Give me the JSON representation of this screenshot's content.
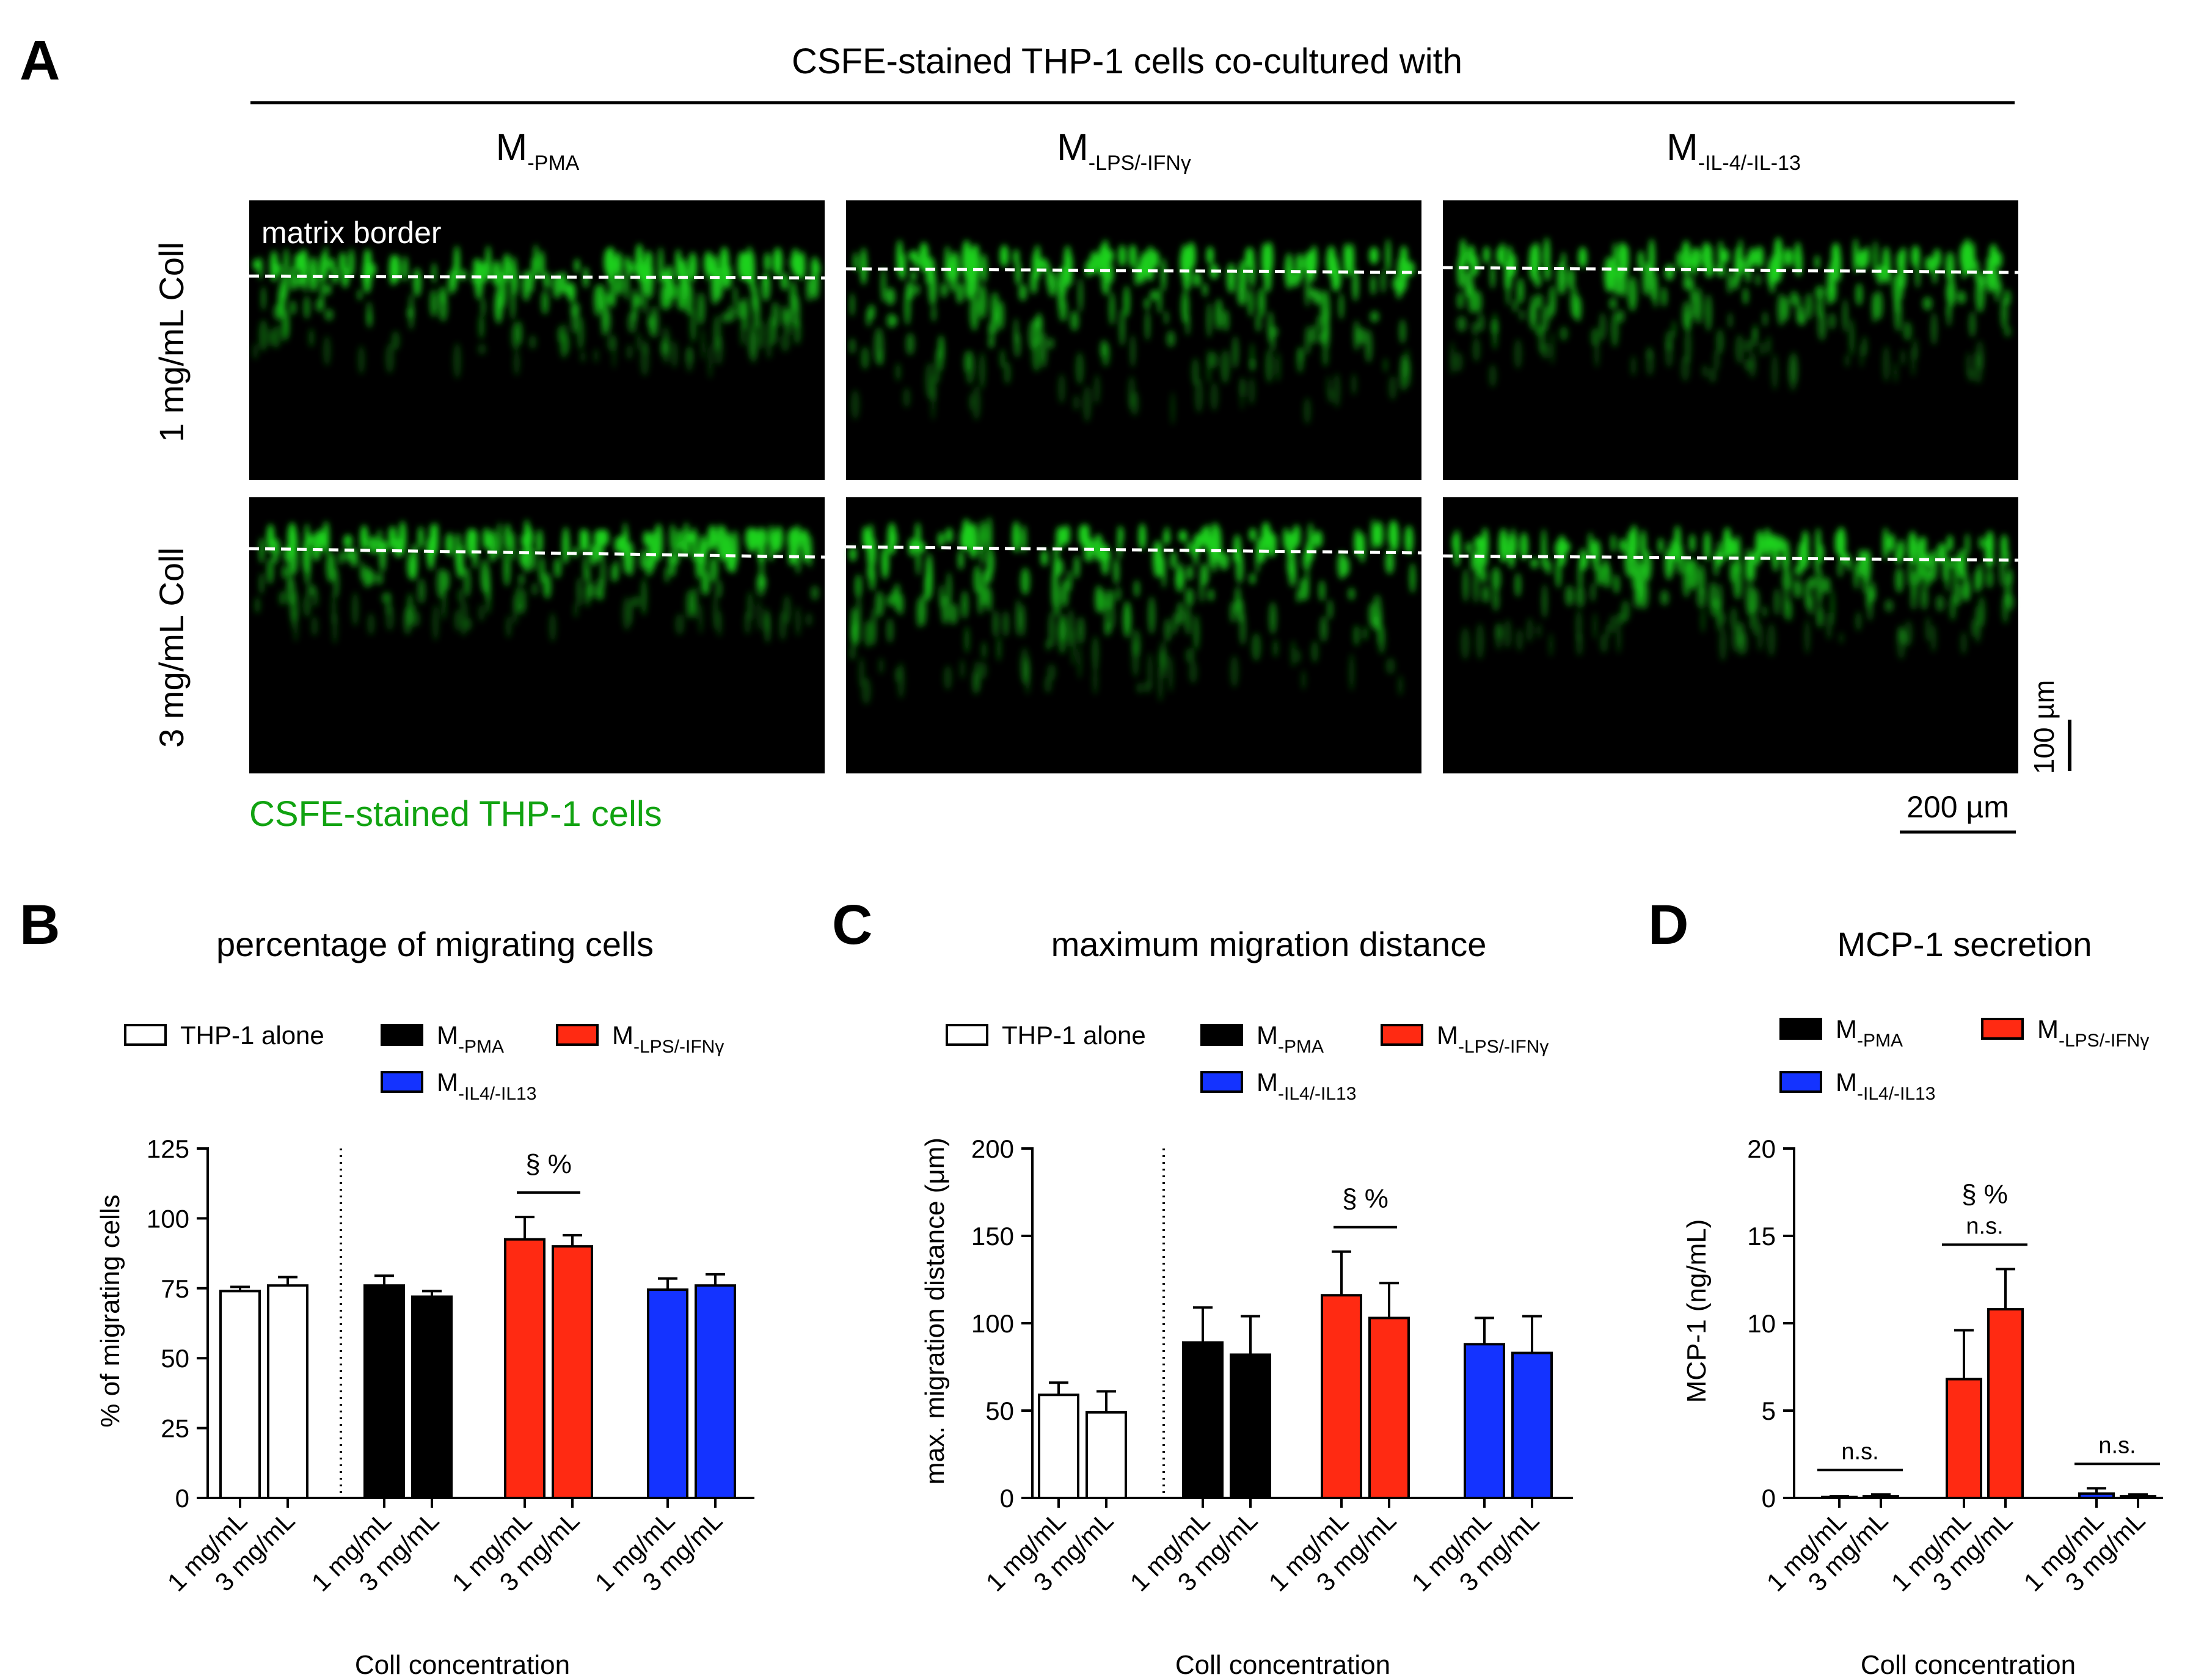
{
  "colors": {
    "white_bar": "#ffffff",
    "pma": "#000000",
    "lps": "#ff2a12",
    "il4": "#1433ff",
    "cell_green": "#1ed21e",
    "legend_green": "#11a311",
    "panel_bg": "#000000"
  },
  "panel_a": {
    "label": "A",
    "header": "CSFE-stained THP-1 cells co-cultured with",
    "columns": [
      {
        "main": "M",
        "sub": "-PMA"
      },
      {
        "main": "M",
        "sub": "-LPS/-IFNγ"
      },
      {
        "main": "M",
        "sub": "-IL-4/-IL-13"
      }
    ],
    "rows": [
      "1 mg/mL Coll",
      "3 mg/mL Coll"
    ],
    "matrix_label": "matrix border",
    "stain_label": "CSFE-stained THP-1 cells",
    "scale_vertical": "100 µm",
    "scale_horizontal": "200 µm"
  },
  "chart_data": [
    {
      "panel": "B",
      "type": "bar",
      "title": "percentage of migrating cells",
      "ylabel": "% of migrating cells",
      "xlabel": "Coll concentration",
      "ylim": [
        0,
        125
      ],
      "yticks": [
        0,
        25,
        50,
        75,
        100,
        125
      ],
      "categories": [
        "1 mg/mL",
        "3 mg/mL"
      ],
      "legend": [
        {
          "name": "THP-1 alone",
          "color": "#ffffff"
        },
        {
          "name": "M",
          "sub": "-PMA",
          "color": "#000000"
        },
        {
          "name": "M",
          "sub": "-LPS/-IFNγ",
          "color": "#ff2a12"
        },
        {
          "name": "M",
          "sub": "-IL4/-IL13",
          "color": "#1433ff"
        }
      ],
      "series": [
        {
          "name": "THP-1 alone",
          "color": "#ffffff",
          "values": [
            74,
            76
          ],
          "errors": [
            1.5,
            3
          ]
        },
        {
          "name": "M-PMA",
          "color": "#000000",
          "values": [
            76,
            72
          ],
          "errors": [
            3.5,
            2
          ]
        },
        {
          "name": "M-LPS/-IFNγ",
          "color": "#ff2a12",
          "values": [
            92.5,
            90
          ],
          "errors": [
            8,
            4
          ]
        },
        {
          "name": "M-IL4/-IL13",
          "color": "#1433ff",
          "values": [
            74.5,
            76
          ],
          "errors": [
            4,
            4
          ]
        }
      ],
      "annotations": [
        {
          "group": 2,
          "text": "§ %"
        }
      ]
    },
    {
      "panel": "C",
      "type": "bar",
      "title": "maximum migration distance",
      "ylabel": "max. migration distance (μm)",
      "xlabel": "Coll concentration",
      "ylim": [
        0,
        200
      ],
      "yticks": [
        0,
        50,
        100,
        150,
        200
      ],
      "categories": [
        "1 mg/mL",
        "3 mg/mL"
      ],
      "legend": [
        {
          "name": "THP-1 alone",
          "color": "#ffffff"
        },
        {
          "name": "M",
          "sub": "-PMA",
          "color": "#000000"
        },
        {
          "name": "M",
          "sub": "-LPS/-IFNγ",
          "color": "#ff2a12"
        },
        {
          "name": "M",
          "sub": "-IL4/-IL13",
          "color": "#1433ff"
        }
      ],
      "series": [
        {
          "name": "THP-1 alone",
          "color": "#ffffff",
          "values": [
            59,
            49
          ],
          "errors": [
            7,
            12
          ]
        },
        {
          "name": "M-PMA",
          "color": "#000000",
          "values": [
            89,
            82
          ],
          "errors": [
            20,
            22
          ]
        },
        {
          "name": "M-LPS/-IFNγ",
          "color": "#ff2a12",
          "values": [
            116,
            103
          ],
          "errors": [
            25,
            20
          ]
        },
        {
          "name": "M-IL4/-IL13",
          "color": "#1433ff",
          "values": [
            88,
            83
          ],
          "errors": [
            15,
            21
          ]
        }
      ],
      "annotations": [
        {
          "group": 2,
          "text": "§ %"
        }
      ]
    },
    {
      "panel": "D",
      "type": "bar",
      "title": "MCP-1 secretion",
      "ylabel": "MCP-1 (ng/mL)",
      "xlabel": "Coll concentration",
      "ylim": [
        0,
        20
      ],
      "yticks": [
        0,
        5,
        10,
        15,
        20
      ],
      "categories": [
        "1 mg/mL",
        "3 mg/mL"
      ],
      "legend": [
        {
          "name": "M",
          "sub": "-PMA",
          "color": "#000000"
        },
        {
          "name": "M",
          "sub": "-LPS/-IFNγ",
          "color": "#ff2a12"
        },
        {
          "name": "M",
          "sub": "-IL4/-IL13",
          "color": "#1433ff"
        }
      ],
      "series": [
        {
          "name": "M-PMA",
          "color": "#000000",
          "values": [
            0.05,
            0.1
          ],
          "errors": [
            0.05,
            0.1
          ]
        },
        {
          "name": "M-LPS/-IFNγ",
          "color": "#ff2a12",
          "values": [
            6.8,
            10.8
          ],
          "errors": [
            2.8,
            2.3
          ]
        },
        {
          "name": "M-IL4/-IL13",
          "color": "#1433ff",
          "values": [
            0.25,
            0.1
          ],
          "errors": [
            0.3,
            0.1
          ]
        }
      ],
      "annotations": [
        {
          "group": 0,
          "text": "n.s."
        },
        {
          "group": 1,
          "text": "n.s."
        },
        {
          "group": 2,
          "text": "n.s."
        },
        {
          "group": 1,
          "text": "§ %"
        }
      ]
    }
  ]
}
